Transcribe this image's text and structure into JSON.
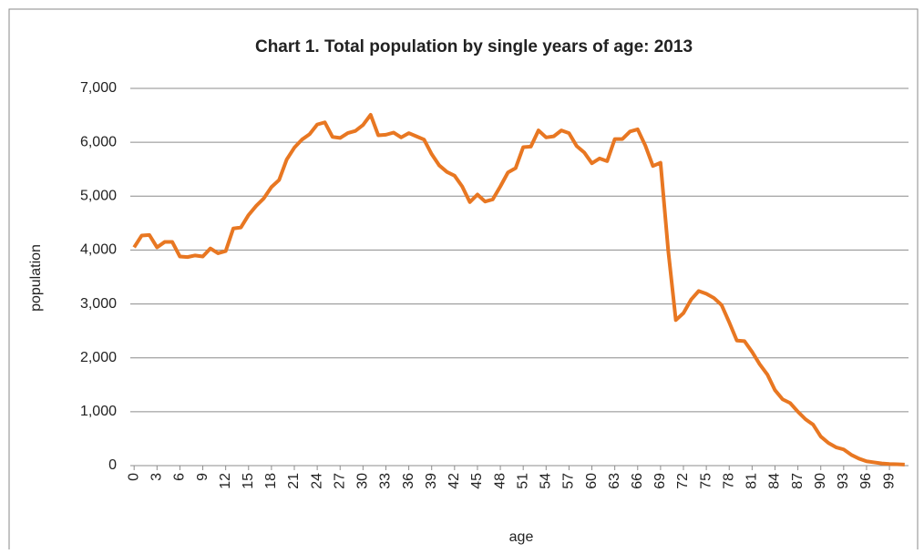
{
  "chart_data": {
    "type": "line",
    "title": "Chart 1. Total population by single years of age: 2013",
    "xlabel": "age",
    "ylabel": "population",
    "x": [
      0,
      1,
      2,
      3,
      4,
      5,
      6,
      7,
      8,
      9,
      10,
      11,
      12,
      13,
      14,
      15,
      16,
      17,
      18,
      19,
      20,
      21,
      22,
      23,
      24,
      25,
      26,
      27,
      28,
      29,
      30,
      31,
      32,
      33,
      34,
      35,
      36,
      37,
      38,
      39,
      40,
      41,
      42,
      43,
      44,
      45,
      46,
      47,
      48,
      49,
      50,
      51,
      52,
      53,
      54,
      55,
      56,
      57,
      58,
      59,
      60,
      61,
      62,
      63,
      64,
      65,
      66,
      67,
      68,
      69,
      70,
      71,
      72,
      73,
      74,
      75,
      76,
      77,
      78,
      79,
      80,
      81,
      82,
      83,
      84,
      85,
      86,
      87,
      88,
      89,
      90,
      91,
      92,
      93,
      94,
      95,
      96,
      97,
      98,
      99,
      100,
      101
    ],
    "series": [
      {
        "name": "population",
        "color": "#e87722",
        "values": [
          4050,
          4270,
          4280,
          4050,
          4150,
          4150,
          3880,
          3870,
          3900,
          3880,
          4030,
          3940,
          3980,
          4400,
          4420,
          4650,
          4820,
          4960,
          5170,
          5300,
          5680,
          5900,
          6050,
          6150,
          6330,
          6370,
          6100,
          6080,
          6170,
          6210,
          6320,
          6510,
          6130,
          6140,
          6180,
          6090,
          6170,
          6110,
          6050,
          5780,
          5570,
          5450,
          5380,
          5180,
          4890,
          5030,
          4900,
          4940,
          5180,
          5440,
          5520,
          5910,
          5920,
          6220,
          6090,
          6110,
          6220,
          6170,
          5930,
          5810,
          5610,
          5700,
          5650,
          6060,
          6060,
          6200,
          6240,
          5940,
          5560,
          5620,
          4000,
          2700,
          2830,
          3080,
          3240,
          3190,
          3110,
          2980,
          2660,
          2320,
          2310,
          2110,
          1880,
          1690,
          1400,
          1230,
          1160,
          1000,
          860,
          760,
          540,
          420,
          340,
          300,
          200,
          130,
          80,
          60,
          40,
          30,
          25,
          20
        ]
      }
    ],
    "xlim": [
      -0.5,
      101.5
    ],
    "xticks": [
      0,
      3,
      6,
      9,
      12,
      15,
      18,
      21,
      24,
      27,
      30,
      33,
      36,
      39,
      42,
      45,
      48,
      51,
      54,
      57,
      60,
      63,
      66,
      69,
      72,
      75,
      78,
      81,
      84,
      87,
      90,
      93,
      96,
      99
    ],
    "ylim": [
      0,
      7000
    ],
    "yticks": [
      0,
      {
        "value": 1000,
        "label": "1,000"
      },
      {
        "value": 2000,
        "label": "2,000"
      },
      {
        "value": 3000,
        "label": "3,000"
      },
      {
        "value": 4000,
        "label": "4,000"
      },
      {
        "value": 5000,
        "label": "5,000"
      },
      {
        "value": 6000,
        "label": "6,000"
      },
      {
        "value": 7000,
        "label": "7,000"
      }
    ],
    "grid": true
  }
}
